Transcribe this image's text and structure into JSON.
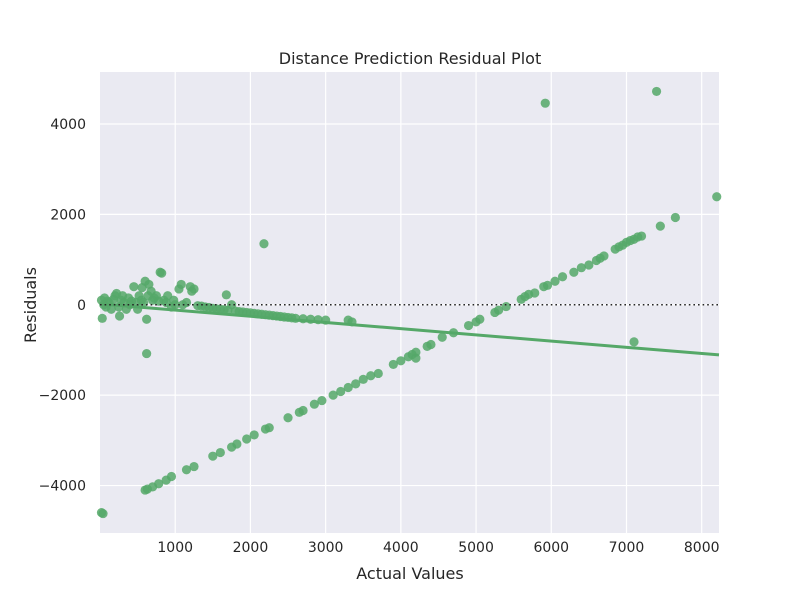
{
  "chart_data": {
    "type": "scatter",
    "title": "Distance Prediction Residual Plot",
    "xlabel": "Actual Values",
    "ylabel": "Residuals",
    "xlim": [
      0,
      8230
    ],
    "ylim": [
      -5050,
      5150
    ],
    "xticks": [
      1000,
      2000,
      3000,
      4000,
      5000,
      6000,
      7000,
      8000
    ],
    "xtick_labels": [
      "1000",
      "2000",
      "3000",
      "4000",
      "5000",
      "6000",
      "7000",
      "8000"
    ],
    "yticks": [
      -4000,
      -2000,
      0,
      2000,
      4000
    ],
    "ytick_labels": [
      "−4000",
      "−2000",
      "0",
      "2000",
      "4000"
    ],
    "grid": true,
    "background_color": "#eaeaf2",
    "point_color": "#55a868",
    "zero_line": {
      "y": 0,
      "style": "dotted",
      "color": "#262626"
    },
    "regression_line": {
      "x": [
        0,
        8230
      ],
      "y": [
        20,
        -1110
      ],
      "color": "#55a868"
    },
    "series": [
      {
        "points": [
          [
            20,
            -4600
          ],
          [
            40,
            -4620
          ],
          [
            20,
            100
          ],
          [
            30,
            -300
          ],
          [
            50,
            0
          ],
          [
            60,
            150
          ],
          [
            80,
            -50
          ],
          [
            100,
            80
          ],
          [
            120,
            50
          ],
          [
            150,
            -100
          ],
          [
            180,
            120
          ],
          [
            200,
            200
          ],
          [
            220,
            250
          ],
          [
            250,
            -50
          ],
          [
            260,
            -250
          ],
          [
            280,
            100
          ],
          [
            300,
            200
          ],
          [
            320,
            50
          ],
          [
            350,
            -100
          ],
          [
            380,
            150
          ],
          [
            400,
            0
          ],
          [
            420,
            80
          ],
          [
            450,
            400
          ],
          [
            480,
            50
          ],
          [
            500,
            -100
          ],
          [
            520,
            200
          ],
          [
            550,
            100
          ],
          [
            560,
            380
          ],
          [
            580,
            50
          ],
          [
            600,
            520
          ],
          [
            620,
            -320
          ],
          [
            620,
            -1080
          ],
          [
            640,
            200
          ],
          [
            650,
            450
          ],
          [
            680,
            300
          ],
          [
            700,
            100
          ],
          [
            720,
            150
          ],
          [
            750,
            200
          ],
          [
            780,
            80
          ],
          [
            800,
            720
          ],
          [
            820,
            700
          ],
          [
            850,
            100
          ],
          [
            880,
            50
          ],
          [
            900,
            200
          ],
          [
            950,
            -50
          ],
          [
            980,
            100
          ],
          [
            1000,
            0
          ],
          [
            1050,
            350
          ],
          [
            1080,
            450
          ],
          [
            1100,
            0
          ],
          [
            1150,
            50
          ],
          [
            1200,
            400
          ],
          [
            1220,
            300
          ],
          [
            1250,
            350
          ],
          [
            1300,
            -20
          ],
          [
            1350,
            -30
          ],
          [
            1400,
            -50
          ],
          [
            1450,
            -60
          ],
          [
            1500,
            -80
          ],
          [
            1550,
            -90
          ],
          [
            1600,
            -100
          ],
          [
            1650,
            -110
          ],
          [
            1680,
            220
          ],
          [
            1700,
            -120
          ],
          [
            1750,
            0
          ],
          [
            1800,
            -140
          ],
          [
            1850,
            -150
          ],
          [
            1900,
            -160
          ],
          [
            1950,
            -170
          ],
          [
            2000,
            -180
          ],
          [
            2050,
            -190
          ],
          [
            2100,
            -200
          ],
          [
            2150,
            -210
          ],
          [
            2180,
            1350
          ],
          [
            2200,
            -220
          ],
          [
            2250,
            -230
          ],
          [
            2300,
            -240
          ],
          [
            2350,
            -250
          ],
          [
            2400,
            -260
          ],
          [
            2450,
            -270
          ],
          [
            2500,
            -280
          ],
          [
            2550,
            -290
          ],
          [
            2600,
            -300
          ],
          [
            2700,
            -310
          ],
          [
            2800,
            -320
          ],
          [
            2900,
            -330
          ],
          [
            3000,
            -340
          ],
          [
            3300,
            -340
          ],
          [
            3350,
            -380
          ],
          [
            600,
            -4100
          ],
          [
            630,
            -4080
          ],
          [
            700,
            -4030
          ],
          [
            780,
            -3960
          ],
          [
            880,
            -3880
          ],
          [
            950,
            -3800
          ],
          [
            1150,
            -3650
          ],
          [
            1250,
            -3580
          ],
          [
            1500,
            -3350
          ],
          [
            1600,
            -3270
          ],
          [
            1750,
            -3150
          ],
          [
            1820,
            -3080
          ],
          [
            1950,
            -2970
          ],
          [
            2050,
            -2880
          ],
          [
            2200,
            -2750
          ],
          [
            2250,
            -2720
          ],
          [
            2500,
            -2500
          ],
          [
            2650,
            -2380
          ],
          [
            2700,
            -2340
          ],
          [
            2850,
            -2200
          ],
          [
            2950,
            -2120
          ],
          [
            3100,
            -2000
          ],
          [
            3200,
            -1920
          ],
          [
            3300,
            -1830
          ],
          [
            3400,
            -1750
          ],
          [
            3500,
            -1650
          ],
          [
            3600,
            -1570
          ],
          [
            3700,
            -1520
          ],
          [
            3900,
            -1320
          ],
          [
            4000,
            -1240
          ],
          [
            4100,
            -1150
          ],
          [
            4150,
            -1100
          ],
          [
            4200,
            -1050
          ],
          [
            4200,
            -1180
          ],
          [
            4350,
            -920
          ],
          [
            4400,
            -880
          ],
          [
            4550,
            -720
          ],
          [
            4700,
            -620
          ],
          [
            4900,
            -460
          ],
          [
            5000,
            -380
          ],
          [
            5050,
            -320
          ],
          [
            5250,
            -170
          ],
          [
            5300,
            -120
          ],
          [
            5400,
            -40
          ],
          [
            5600,
            120
          ],
          [
            5650,
            180
          ],
          [
            5700,
            230
          ],
          [
            5780,
            260
          ],
          [
            5900,
            400
          ],
          [
            5950,
            430
          ],
          [
            6050,
            520
          ],
          [
            6150,
            620
          ],
          [
            6300,
            720
          ],
          [
            6400,
            820
          ],
          [
            6500,
            880
          ],
          [
            6600,
            980
          ],
          [
            6650,
            1030
          ],
          [
            6700,
            1080
          ],
          [
            6850,
            1230
          ],
          [
            6900,
            1280
          ],
          [
            6950,
            1320
          ],
          [
            7000,
            1380
          ],
          [
            7050,
            1420
          ],
          [
            7100,
            1450
          ],
          [
            7150,
            1500
          ],
          [
            7200,
            1520
          ],
          [
            7450,
            1740
          ],
          [
            7650,
            1930
          ],
          [
            8200,
            2390
          ],
          [
            7100,
            -820
          ],
          [
            5920,
            4460
          ],
          [
            7400,
            4720
          ]
        ]
      }
    ]
  }
}
